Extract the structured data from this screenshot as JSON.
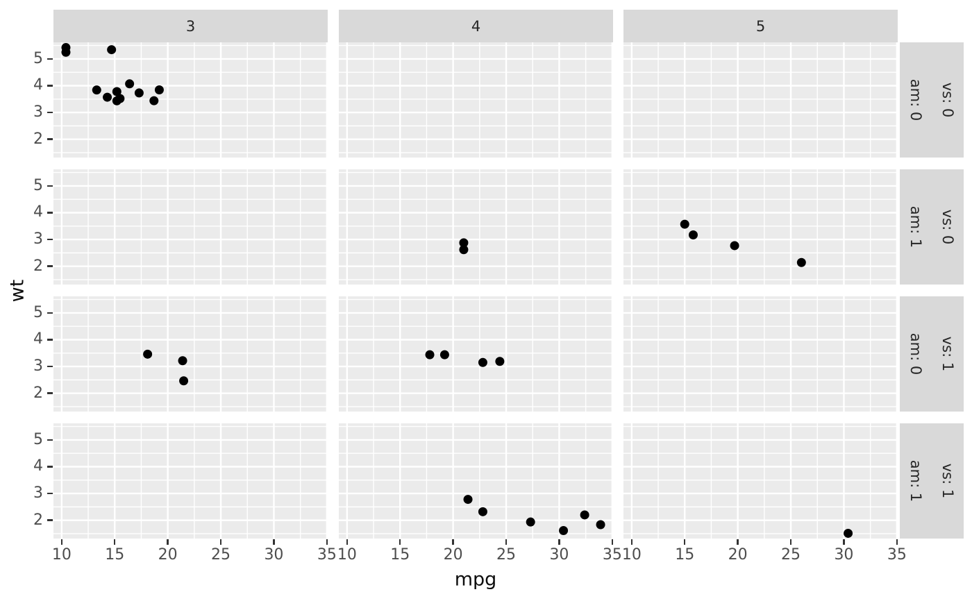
{
  "chart_data": {
    "type": "scatter",
    "title": "",
    "xlabel": "mpg",
    "ylabel": "wt",
    "legend": "none",
    "grid": true,
    "xlim": [
      9.225,
      35.075
    ],
    "ylim": [
      1.3175,
      5.6195
    ],
    "x_ticks": [
      10,
      15,
      20,
      25,
      30,
      35
    ],
    "y_ticks": [
      2,
      3,
      4,
      5
    ],
    "x_minor_gridlines": [
      12.5,
      17.5,
      22.5,
      27.5,
      32.5
    ],
    "y_minor_gridlines": [
      1.5,
      2.5,
      3.5,
      4.5,
      5.5
    ],
    "facet": {
      "col_variable": "gear",
      "col_labels": [
        "3",
        "4",
        "5"
      ],
      "row_labels": [
        {
          "vs": "vs: 0",
          "am": "am: 0"
        },
        {
          "vs": "vs: 0",
          "am": "am: 1"
        },
        {
          "vs": "vs: 1",
          "am": "am: 0"
        },
        {
          "vs": "vs: 1",
          "am": "am: 1"
        }
      ]
    },
    "panels": [
      {
        "row": 0,
        "col": 0,
        "points": [
          [
            18.7,
            3.44
          ],
          [
            14.3,
            3.57
          ],
          [
            16.4,
            4.07
          ],
          [
            17.3,
            3.73
          ],
          [
            15.2,
            3.78
          ],
          [
            10.4,
            5.25
          ],
          [
            10.4,
            5.424
          ],
          [
            14.7,
            5.345
          ],
          [
            15.5,
            3.52
          ],
          [
            15.2,
            3.435
          ],
          [
            13.3,
            3.84
          ],
          [
            19.2,
            3.845
          ]
        ]
      },
      {
        "row": 0,
        "col": 1,
        "points": []
      },
      {
        "row": 0,
        "col": 2,
        "points": []
      },
      {
        "row": 1,
        "col": 0,
        "points": []
      },
      {
        "row": 1,
        "col": 1,
        "points": [
          [
            21.0,
            2.62
          ],
          [
            21.0,
            2.875
          ]
        ]
      },
      {
        "row": 1,
        "col": 2,
        "points": [
          [
            15.0,
            3.57
          ],
          [
            15.8,
            3.17
          ],
          [
            19.7,
            2.77
          ],
          [
            26.0,
            2.14
          ]
        ]
      },
      {
        "row": 2,
        "col": 0,
        "points": [
          [
            21.4,
            3.215
          ],
          [
            18.1,
            3.46
          ],
          [
            21.5,
            2.465
          ]
        ]
      },
      {
        "row": 2,
        "col": 1,
        "points": [
          [
            24.4,
            3.19
          ],
          [
            22.8,
            3.15
          ],
          [
            19.2,
            3.44
          ],
          [
            17.8,
            3.44
          ]
        ]
      },
      {
        "row": 2,
        "col": 2,
        "points": []
      },
      {
        "row": 3,
        "col": 0,
        "points": []
      },
      {
        "row": 3,
        "col": 1,
        "points": [
          [
            22.8,
            2.32
          ],
          [
            32.4,
            2.2
          ],
          [
            30.4,
            1.615
          ],
          [
            33.9,
            1.835
          ],
          [
            27.3,
            1.935
          ],
          [
            21.4,
            2.78
          ]
        ]
      },
      {
        "row": 3,
        "col": 2,
        "points": [
          [
            30.4,
            1.513
          ]
        ]
      }
    ],
    "colors": {
      "panel_background": "#EBEBEB",
      "strip_background": "#D9D9D9",
      "gridline": "#FFFFFF",
      "point": "#000000",
      "tick_label": "#4D4D4D",
      "axis_title": "#0D0D0D",
      "strip_text": "#262626",
      "tick_mark": "#333333"
    }
  }
}
